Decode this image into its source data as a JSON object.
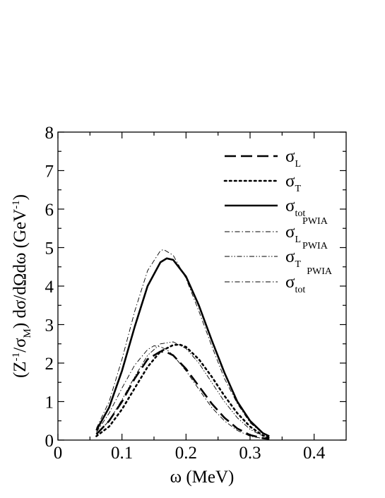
{
  "chart_data": {
    "type": "line",
    "xlabel": "ω  (MeV)",
    "ylabel": "(Z⁻¹/σM) dσ/dΩdω  (GeV⁻¹)",
    "ylabel_parts": {
      "open": "(Z",
      "sup1": "-1",
      "mid": "/σ",
      "sub": "M",
      "close": ") dσ/dΩdω  (GeV",
      "sup2": "-1",
      "end": ")"
    },
    "xlim": [
      0,
      0.45
    ],
    "ylim": [
      0,
      8
    ],
    "xticks": [
      0,
      0.1,
      0.2,
      0.3,
      0.4
    ],
    "xtick_labels": [
      "0",
      "0.1",
      "0.2",
      "0.3",
      "0.4"
    ],
    "yticks": [
      0,
      1,
      2,
      3,
      4,
      5,
      6,
      7,
      8
    ],
    "ytick_labels": [
      "0",
      "1",
      "2",
      "3",
      "4",
      "5",
      "6",
      "7",
      "8"
    ],
    "grid": false,
    "legend_position": "top-right",
    "series": [
      {
        "name": "σL",
        "base": "σ",
        "sub": "L",
        "sup": "",
        "style": "dashed",
        "weight": "thick",
        "x": [
          0.06,
          0.08,
          0.1,
          0.12,
          0.14,
          0.16,
          0.17,
          0.18,
          0.2,
          0.22,
          0.24,
          0.26,
          0.28,
          0.3,
          0.32,
          0.33
        ],
        "y": [
          0.15,
          0.5,
          1.0,
          1.6,
          2.1,
          2.3,
          2.28,
          2.2,
          1.85,
          1.4,
          0.95,
          0.58,
          0.3,
          0.13,
          0.05,
          0.03
        ]
      },
      {
        "name": "σT",
        "base": "σ",
        "sub": "T",
        "sup": "",
        "style": "dotted",
        "weight": "thick",
        "x": [
          0.06,
          0.08,
          0.1,
          0.12,
          0.14,
          0.16,
          0.18,
          0.19,
          0.2,
          0.22,
          0.24,
          0.26,
          0.28,
          0.3,
          0.32,
          0.33
        ],
        "y": [
          0.1,
          0.35,
          0.8,
          1.35,
          1.9,
          2.3,
          2.47,
          2.48,
          2.42,
          2.1,
          1.65,
          1.15,
          0.7,
          0.35,
          0.12,
          0.06
        ]
      },
      {
        "name": "σtot",
        "base": "σ",
        "sub": "tot",
        "sup": "",
        "style": "solid",
        "weight": "thick",
        "x": [
          0.06,
          0.08,
          0.1,
          0.12,
          0.14,
          0.16,
          0.17,
          0.18,
          0.2,
          0.22,
          0.24,
          0.26,
          0.28,
          0.3,
          0.32,
          0.33
        ],
        "y": [
          0.25,
          0.85,
          1.8,
          2.95,
          4.0,
          4.62,
          4.72,
          4.68,
          4.25,
          3.5,
          2.6,
          1.75,
          1.0,
          0.5,
          0.18,
          0.1
        ]
      },
      {
        "name": "σL PWIA",
        "base": "σ",
        "sub": "L",
        "sup": "PWIA",
        "style": "dashdot",
        "weight": "thin",
        "x": [
          0.06,
          0.08,
          0.1,
          0.12,
          0.14,
          0.15,
          0.16,
          0.17,
          0.18,
          0.2,
          0.22,
          0.24,
          0.26,
          0.28,
          0.3,
          0.32,
          0.33
        ],
        "y": [
          0.2,
          0.7,
          1.35,
          1.95,
          2.35,
          2.45,
          2.42,
          2.35,
          2.2,
          1.8,
          1.32,
          0.85,
          0.5,
          0.25,
          0.1,
          0.04,
          0.02
        ]
      },
      {
        "name": "σT PWIA",
        "base": "σ",
        "sub": "T",
        "sup": "PWIA",
        "style": "dashdotdot",
        "weight": "thin",
        "x": [
          0.06,
          0.08,
          0.1,
          0.12,
          0.14,
          0.16,
          0.18,
          0.2,
          0.22,
          0.24,
          0.26,
          0.28,
          0.3,
          0.32,
          0.33
        ],
        "y": [
          0.15,
          0.5,
          1.05,
          1.65,
          2.2,
          2.5,
          2.55,
          2.38,
          2.0,
          1.5,
          1.0,
          0.58,
          0.28,
          0.1,
          0.05
        ]
      },
      {
        "name": "σtot PWIA",
        "base": "σ",
        "sub": "tot",
        "sup": "PWIA",
        "style": "dashdot",
        "weight": "thin",
        "x": [
          0.06,
          0.08,
          0.1,
          0.12,
          0.14,
          0.16,
          0.165,
          0.18,
          0.2,
          0.22,
          0.24,
          0.26,
          0.28,
          0.3,
          0.32,
          0.33
        ],
        "y": [
          0.3,
          1.0,
          2.1,
          3.35,
          4.4,
          4.92,
          4.95,
          4.8,
          4.2,
          3.35,
          2.45,
          1.6,
          0.95,
          0.45,
          0.17,
          0.08
        ]
      }
    ]
  }
}
